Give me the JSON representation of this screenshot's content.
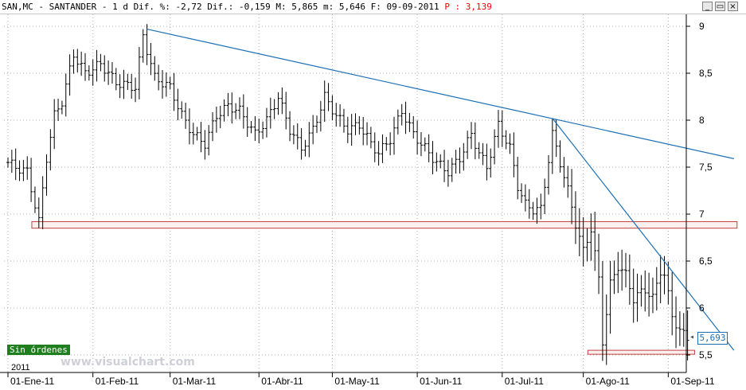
{
  "titlebar": {
    "text": "SAN,MC - SANTANDER -  1 d Dif. %: -2,72 Dif.: -0,159 M: 5,865 m: 5,646 F: 09-09-2011",
    "p_value": "P : 3,139",
    "min_icon": "minimize-icon",
    "restore_icon": "restore-icon",
    "close_icon": "close-icon"
  },
  "status": {
    "sin_ordenes": "Sin órdenes",
    "watermark": "www.visualchart.com",
    "year": "2011"
  },
  "last_price": {
    "value": "5,693",
    "arrow_icon": "arrow-left-icon"
  },
  "colors": {
    "bars": "#000000",
    "trendline": "#1b6fb5",
    "support": "#c04040",
    "support_fill": "#fff0f0",
    "grid": "#b0b0b0"
  },
  "chart_data": {
    "type": "bar",
    "bar_style": "ohlc",
    "ylim": [
      5.4,
      9.05
    ],
    "y_ticks": [
      {
        "value": 9,
        "label": "9"
      },
      {
        "value": 8.5,
        "label": "8,5"
      },
      {
        "value": 8,
        "label": "8"
      },
      {
        "value": 7.5,
        "label": "7,5"
      },
      {
        "value": 7,
        "label": "7"
      },
      {
        "value": 6.5,
        "label": "6,5"
      },
      {
        "value": 6,
        "label": "6"
      },
      {
        "value": 5.5,
        "label": "5,5"
      }
    ],
    "x_ticks": [
      {
        "index": 0,
        "label": "01-Ene-11"
      },
      {
        "index": 22,
        "label": "01-Feb-11"
      },
      {
        "index": 42,
        "label": "01-Mar-11"
      },
      {
        "index": 65,
        "label": "01-Abr-11"
      },
      {
        "index": 84,
        "label": "01-May-11"
      },
      {
        "index": 106,
        "label": "01-Jun-11"
      },
      {
        "index": 128,
        "label": "01-Jul-11"
      },
      {
        "index": 149,
        "label": "01-Ago-11"
      },
      {
        "index": 171,
        "label": "01-Sep-11"
      }
    ],
    "grid": true,
    "last_value": 5.693,
    "trendlines": [
      {
        "start": [
          36,
          8.97
        ],
        "end": [
          188,
          7.59
        ]
      },
      {
        "start": [
          141,
          8.02
        ],
        "end": [
          188,
          5.55
        ]
      }
    ],
    "support_zones": [
      {
        "start": 7,
        "end": 188,
        "low": 6.85,
        "high": 6.92
      },
      {
        "start": 151,
        "end": 177,
        "low": 5.51,
        "high": 5.55
      }
    ],
    "anchors": [
      [
        0,
        7.55
      ],
      [
        2,
        7.5
      ],
      [
        5,
        7.45
      ],
      [
        8,
        6.92
      ],
      [
        10,
        7.6
      ],
      [
        12,
        8.05
      ],
      [
        14,
        8.2
      ],
      [
        17,
        8.7
      ],
      [
        20,
        8.5
      ],
      [
        24,
        8.6
      ],
      [
        28,
        8.4
      ],
      [
        33,
        8.35
      ],
      [
        35,
        8.9
      ],
      [
        38,
        8.45
      ],
      [
        42,
        8.35
      ],
      [
        45,
        8.05
      ],
      [
        48,
        7.85
      ],
      [
        51,
        7.75
      ],
      [
        54,
        8.05
      ],
      [
        57,
        8.15
      ],
      [
        60,
        8.1
      ],
      [
        64,
        7.85
      ],
      [
        67,
        8.0
      ],
      [
        70,
        8.25
      ],
      [
        73,
        7.9
      ],
      [
        76,
        7.7
      ],
      [
        79,
        7.9
      ],
      [
        82,
        8.25
      ],
      [
        85,
        8.05
      ],
      [
        88,
        7.9
      ],
      [
        91,
        7.95
      ],
      [
        94,
        7.75
      ],
      [
        96,
        7.65
      ],
      [
        99,
        7.8
      ],
      [
        102,
        8.1
      ],
      [
        105,
        7.85
      ],
      [
        108,
        7.7
      ],
      [
        111,
        7.55
      ],
      [
        114,
        7.45
      ],
      [
        117,
        7.6
      ],
      [
        120,
        7.85
      ],
      [
        122,
        7.65
      ],
      [
        124,
        7.5
      ],
      [
        127,
        7.95
      ],
      [
        130,
        7.7
      ],
      [
        132,
        7.3
      ],
      [
        134,
        7.1
      ],
      [
        136,
        7.05
      ],
      [
        138,
        7.05
      ],
      [
        141,
        7.85
      ],
      [
        143,
        7.55
      ],
      [
        145,
        7.25
      ],
      [
        147,
        6.9
      ],
      [
        149,
        6.6
      ],
      [
        151,
        6.85
      ],
      [
        153,
        6.3
      ],
      [
        154,
        5.65
      ],
      [
        156,
        6.25
      ],
      [
        158,
        6.45
      ],
      [
        160,
        6.35
      ],
      [
        162,
        6.1
      ],
      [
        165,
        6.2
      ],
      [
        167,
        6.1
      ],
      [
        169,
        6.4
      ],
      [
        170,
        6.35
      ],
      [
        172,
        5.92
      ],
      [
        174,
        5.75
      ],
      [
        176,
        5.69
      ]
    ]
  }
}
